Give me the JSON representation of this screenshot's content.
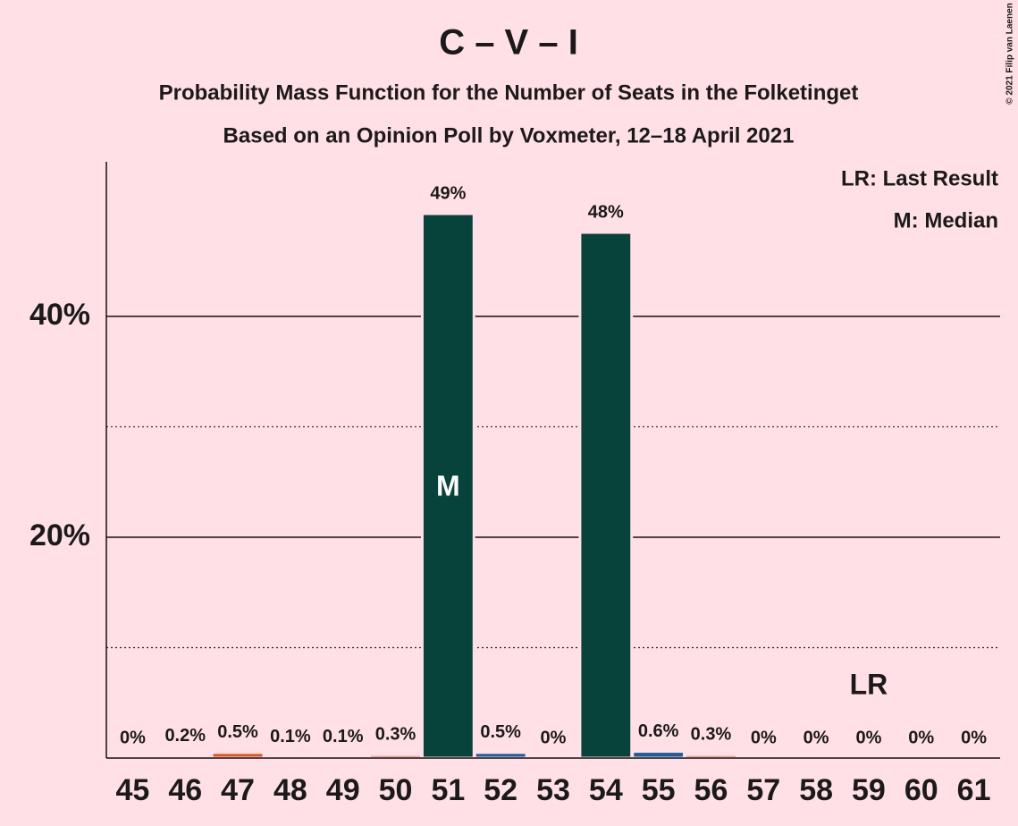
{
  "chart_data": {
    "type": "bar",
    "title": "C – V – I",
    "subtitle": "Probability Mass Function for the Number of Seats in the Folketinget",
    "subtitle2": "Based on an Opinion Poll by Voxmeter, 12–18 April 2021",
    "copyright": "© 2021 Filip van Laenen",
    "legend_notes": [
      "LR: Last Result",
      "M: Median"
    ],
    "categories": [
      "45",
      "46",
      "47",
      "48",
      "49",
      "50",
      "51",
      "52",
      "53",
      "54",
      "55",
      "56",
      "57",
      "58",
      "59",
      "60",
      "61"
    ],
    "values": [
      0,
      0.2,
      0.5,
      0.1,
      0.1,
      0.3,
      49.3,
      0.5,
      0,
      47.6,
      0.6,
      0.3,
      0,
      0,
      0,
      0,
      0
    ],
    "value_labels": [
      "0%",
      "0.2%",
      "0.5%",
      "0.1%",
      "0.1%",
      "0.3%",
      "49%",
      "0.5%",
      "0%",
      "48%",
      "0.6%",
      "0.3%",
      "0%",
      "0%",
      "0%",
      "0%",
      "0%"
    ],
    "colors": [
      "#1f3a6b",
      "#1f3a6b",
      "#e4531f",
      "#1f3a6b",
      "#1f3a6b",
      "#e8632a",
      "#07433a",
      "#1a5ea0",
      "#1f3a6b",
      "#07433a",
      "#1a5ea0",
      "#e8632a",
      "#1f3a6b",
      "#1f3a6b",
      "#1f3a6b",
      "#1f3a6b",
      "#1f3a6b"
    ],
    "markers": [
      {
        "label": "M",
        "category": "51"
      },
      {
        "label": "LR",
        "category": "59"
      }
    ],
    "ylim": [
      0,
      54
    ],
    "yticks": [
      {
        "value": 20,
        "label": "20%"
      },
      {
        "value": 40,
        "label": "40%"
      }
    ],
    "minor_yticks": [
      10,
      30
    ],
    "grid": true
  }
}
